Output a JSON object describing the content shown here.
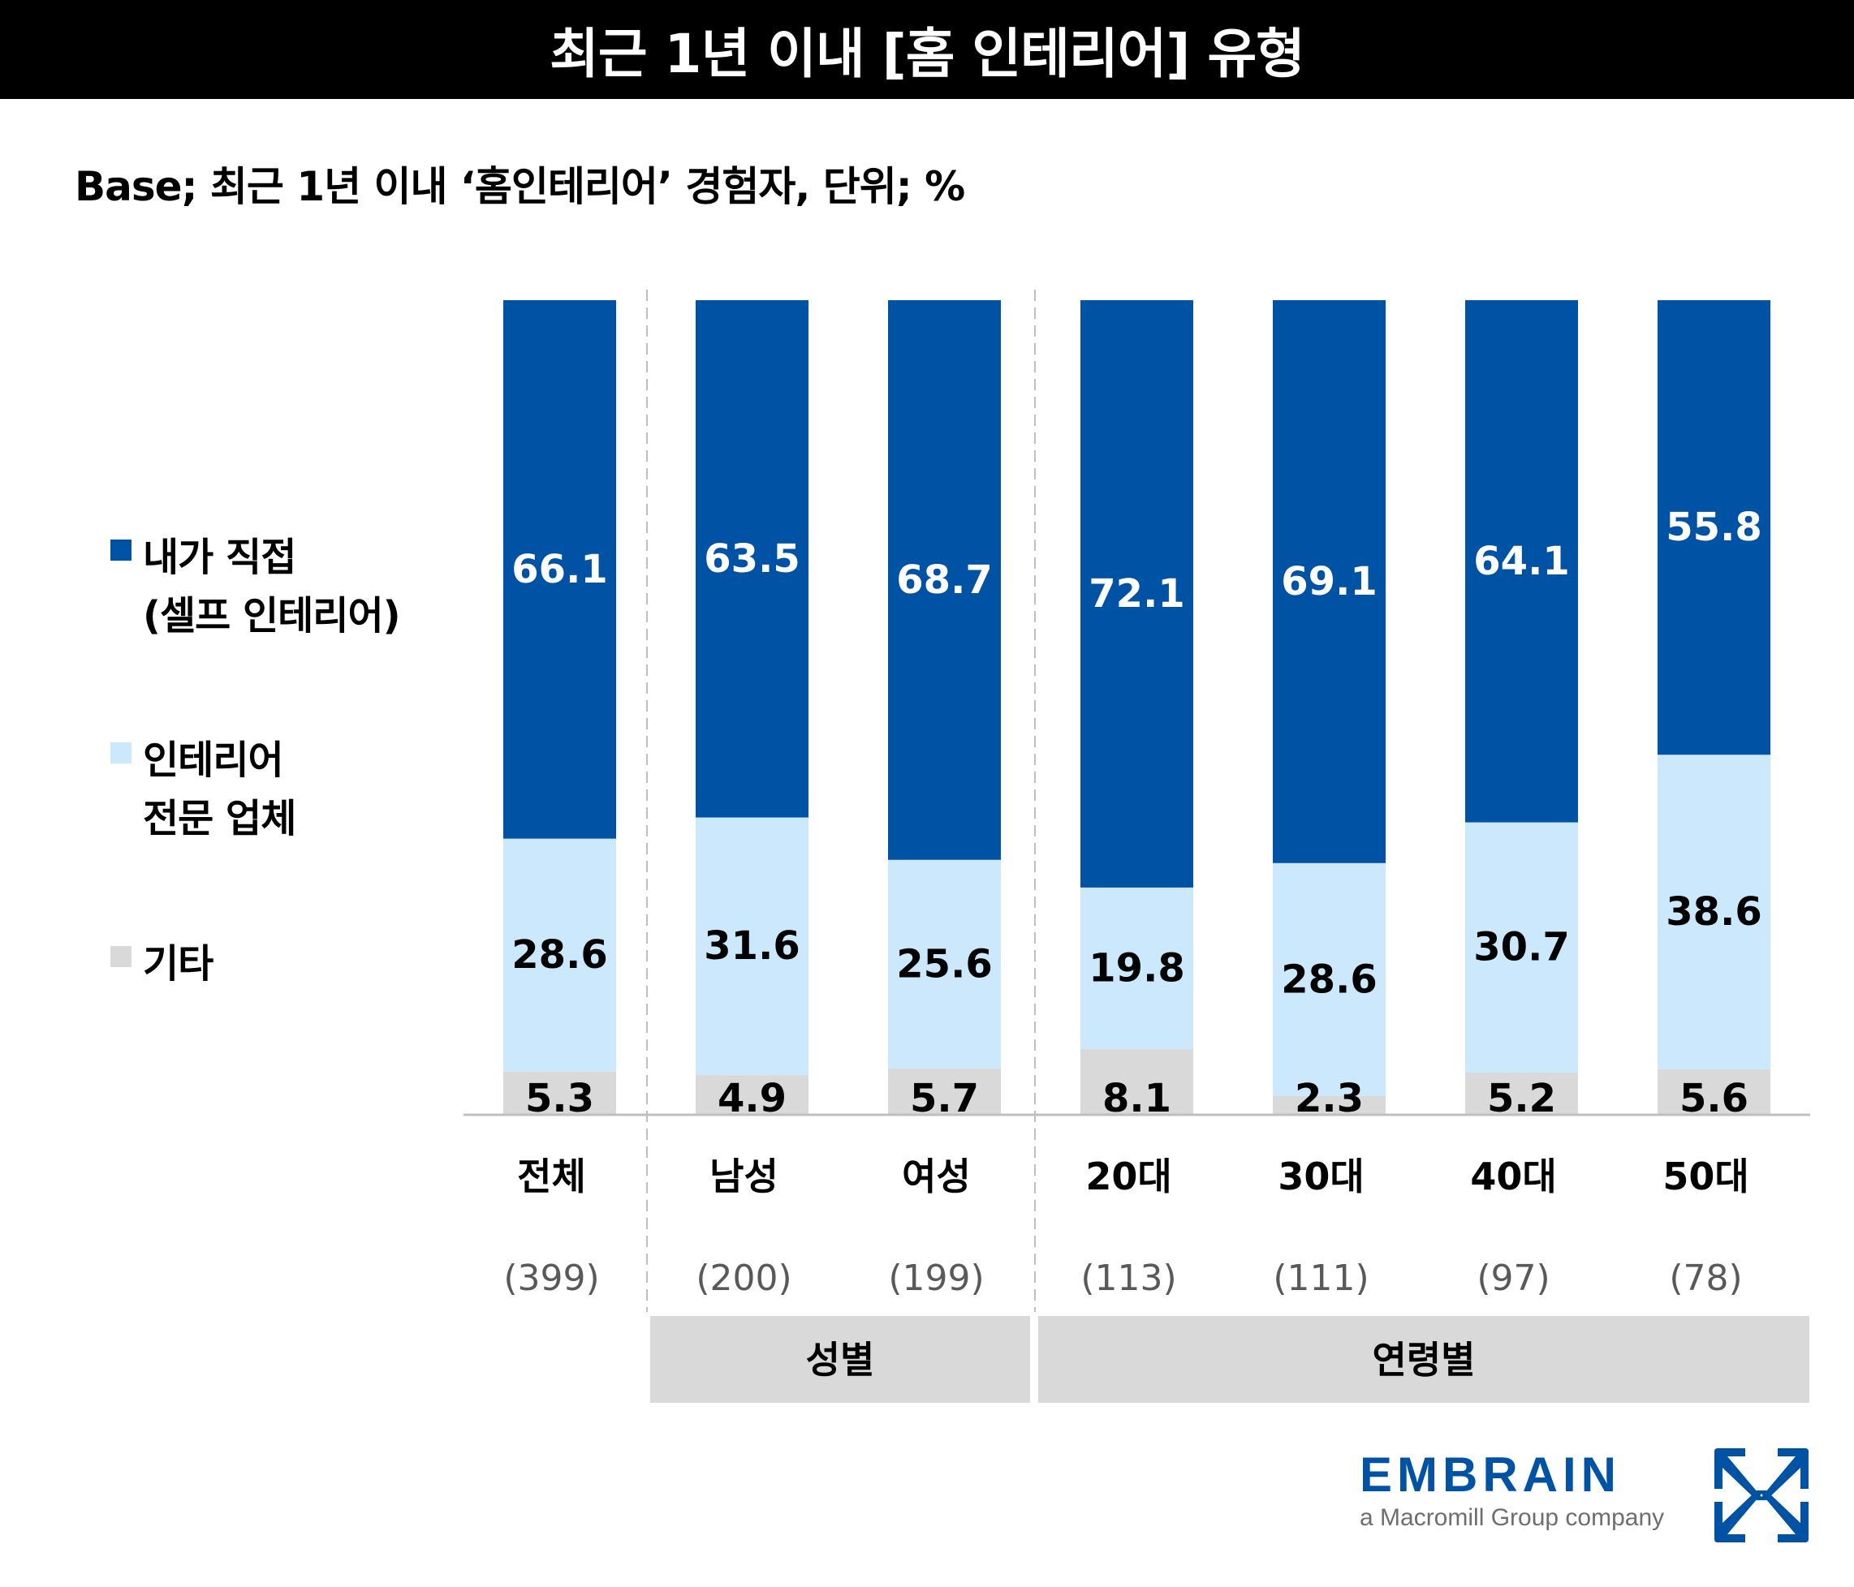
{
  "header": {
    "title": "최근 1년 이내 [홈 인테리어] 유형",
    "subtitle": "Base; 최근 1년 이내 ‘홈인테리어’ 경험자, 단위; %"
  },
  "legend": [
    {
      "line1": "내가 직접",
      "line2": "(셀프 인테리어)",
      "color": "#0052A4"
    },
    {
      "line1": "인테리어",
      "line2": "전문 업체",
      "color": "#CCE8FC"
    },
    {
      "line1": "기타",
      "line2": "",
      "color": "#D9D9D9"
    }
  ],
  "chart_data": {
    "type": "bar",
    "stacked": true,
    "orientation": "vertical",
    "title": "최근 1년 이내 [홈 인테리어] 유형",
    "subtitle": "Base; 최근 1년 이내 ‘홈인테리어’ 경험자, 단위; %",
    "xlabel": "",
    "ylabel": "",
    "unit": "%",
    "ylim": [
      0,
      100
    ],
    "grid": false,
    "legend_position": "left",
    "categories": [
      "전체",
      "남성",
      "여성",
      "20대",
      "30대",
      "40대",
      "50대"
    ],
    "sample_sizes": [
      "(399)",
      "(200)",
      "(199)",
      "(113)",
      "(111)",
      "(97)",
      "(78)"
    ],
    "groups": [
      {
        "label": "성별",
        "categories": [
          "남성",
          "여성"
        ]
      },
      {
        "label": "연령별",
        "categories": [
          "20대",
          "30대",
          "40대",
          "50대"
        ]
      }
    ],
    "series": [
      {
        "name": "기타",
        "color": "#D9D9D9",
        "label_color": "#000000",
        "values": [
          5.3,
          4.9,
          5.7,
          8.1,
          2.3,
          5.2,
          5.6
        ]
      },
      {
        "name": "인테리어 전문 업체",
        "color": "#CCE8FC",
        "label_color": "#000000",
        "values": [
          28.6,
          31.6,
          25.6,
          19.8,
          28.6,
          30.7,
          38.6
        ]
      },
      {
        "name": "내가 직접 (셀프 인테리어)",
        "color": "#0052A4",
        "label_color": "#FFFFFF",
        "values": [
          66.1,
          63.5,
          68.7,
          72.1,
          69.1,
          64.1,
          55.8
        ]
      }
    ]
  },
  "logo": {
    "wordmark": "EMBRAIN",
    "tagline": "a Macromill Group company",
    "color": "#0052A4"
  }
}
